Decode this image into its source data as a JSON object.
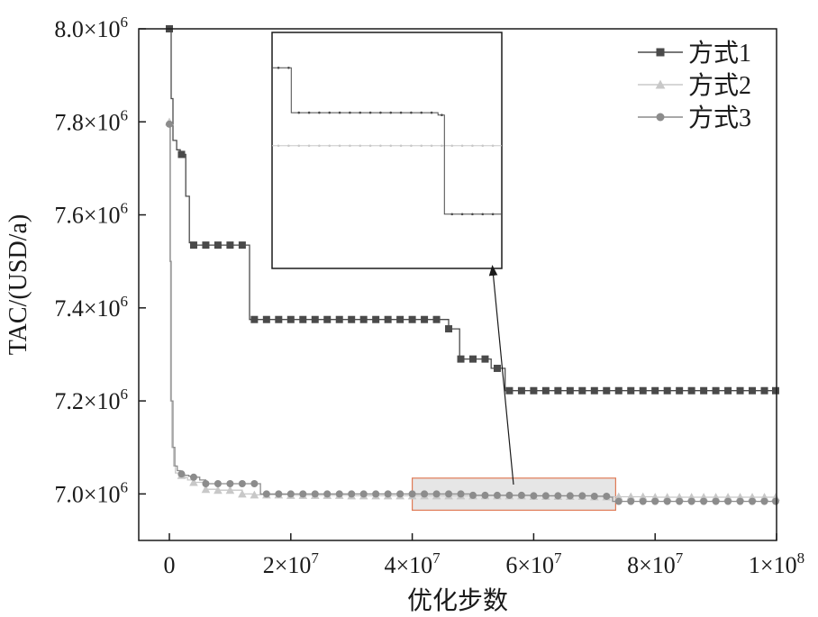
{
  "chart_data": {
    "type": "line",
    "title": "",
    "xlabel": "优化步数",
    "ylabel": "TAC/(USD/a)",
    "xlim": [
      -2500000,
      100000000
    ],
    "ylim": [
      6900000,
      8000000
    ],
    "y_ticks": [
      {
        "value": 7000000,
        "mant": "7.0",
        "base": "×10",
        "exp": "6"
      },
      {
        "value": 7200000,
        "mant": "7.2",
        "base": "×10",
        "exp": "6"
      },
      {
        "value": 7400000,
        "mant": "7.4",
        "base": "×10",
        "exp": "6"
      },
      {
        "value": 7600000,
        "mant": "7.6",
        "base": "×10",
        "exp": "6"
      },
      {
        "value": 7800000,
        "mant": "7.8",
        "base": "×10",
        "exp": "6"
      },
      {
        "value": 8000000,
        "mant": "8.0",
        "base": "×10",
        "exp": "6"
      }
    ],
    "x_ticks": [
      {
        "value": 0,
        "mant": "0",
        "base": "",
        "exp": ""
      },
      {
        "value": 20000000,
        "mant": "2",
        "base": "×10",
        "exp": "7"
      },
      {
        "value": 40000000,
        "mant": "4",
        "base": "×10",
        "exp": "7"
      },
      {
        "value": 60000000,
        "mant": "6",
        "base": "×10",
        "exp": "7"
      },
      {
        "value": 80000000,
        "mant": "8",
        "base": "×10",
        "exp": "7"
      },
      {
        "value": 100000000,
        "mant": "1",
        "base": "×10",
        "exp": "8"
      }
    ],
    "legend_position": "top-right",
    "series": [
      {
        "name": "方式1",
        "color": "#4a4a4a",
        "marker": "square",
        "x": [
          0,
          300000,
          600000,
          1200000,
          1800000,
          2300000,
          2700000,
          3300000,
          4000000,
          12800000,
          13200000,
          20000000,
          30000000,
          45700000,
          46000000,
          47300000,
          47800000,
          50000000,
          52500000,
          53000000,
          54800000,
          55300000,
          60000000,
          80000000,
          100000000
        ],
        "y": [
          8000000,
          7850000,
          7760000,
          7740000,
          7730000,
          7730000,
          7640000,
          7540000,
          7535000,
          7535000,
          7375000,
          7375000,
          7375000,
          7375000,
          7355000,
          7355000,
          7290000,
          7290000,
          7290000,
          7270000,
          7270000,
          7222000,
          7222000,
          7222000,
          7222000
        ]
      },
      {
        "name": "方式2",
        "color": "#c8c8c8",
        "marker": "triangle",
        "x": [
          0,
          100000,
          200000,
          400000,
          700000,
          1000000,
          1500000,
          2000000,
          2500000,
          3000000,
          4000000,
          6000000,
          8000000,
          10000000,
          12000000,
          14000000,
          20000000,
          30000000,
          40000000,
          50000000,
          60000000,
          70000000,
          80000000,
          90000000,
          100000000
        ],
        "y": [
          7800000,
          7500000,
          7200000,
          7100000,
          7060000,
          7045000,
          7040000,
          7040000,
          7035000,
          7030000,
          7025000,
          7010000,
          7008000,
          7008000,
          7000000,
          6998000,
          6997000,
          6996000,
          6996000,
          6996000,
          6995000,
          6994000,
          6993000,
          6993000,
          6993000
        ]
      },
      {
        "name": "方式3",
        "color": "#8c8c8c",
        "marker": "circle",
        "x": [
          0,
          150000,
          300000,
          600000,
          900000,
          1300000,
          1800000,
          2500000,
          3200000,
          4000000,
          5000000,
          6000000,
          8000000,
          10000000,
          14000000,
          15000000,
          20000000,
          30000000,
          40000000,
          50000000,
          60000000,
          70000000,
          72500000,
          73000000,
          80000000,
          100000000
        ],
        "y": [
          7795000,
          7500000,
          7200000,
          7100000,
          7060000,
          7050000,
          7043000,
          7040000,
          7038000,
          7036000,
          7030000,
          7022000,
          7022000,
          7022000,
          7022000,
          7000000,
          7000000,
          7000000,
          7000000,
          6997000,
          6996000,
          6995000,
          6993000,
          6984000,
          6984000,
          6984000
        ]
      }
    ],
    "highlight_range": {
      "x": [
        40000000,
        73500000
      ],
      "y": [
        6965000,
        7034000
      ]
    }
  }
}
